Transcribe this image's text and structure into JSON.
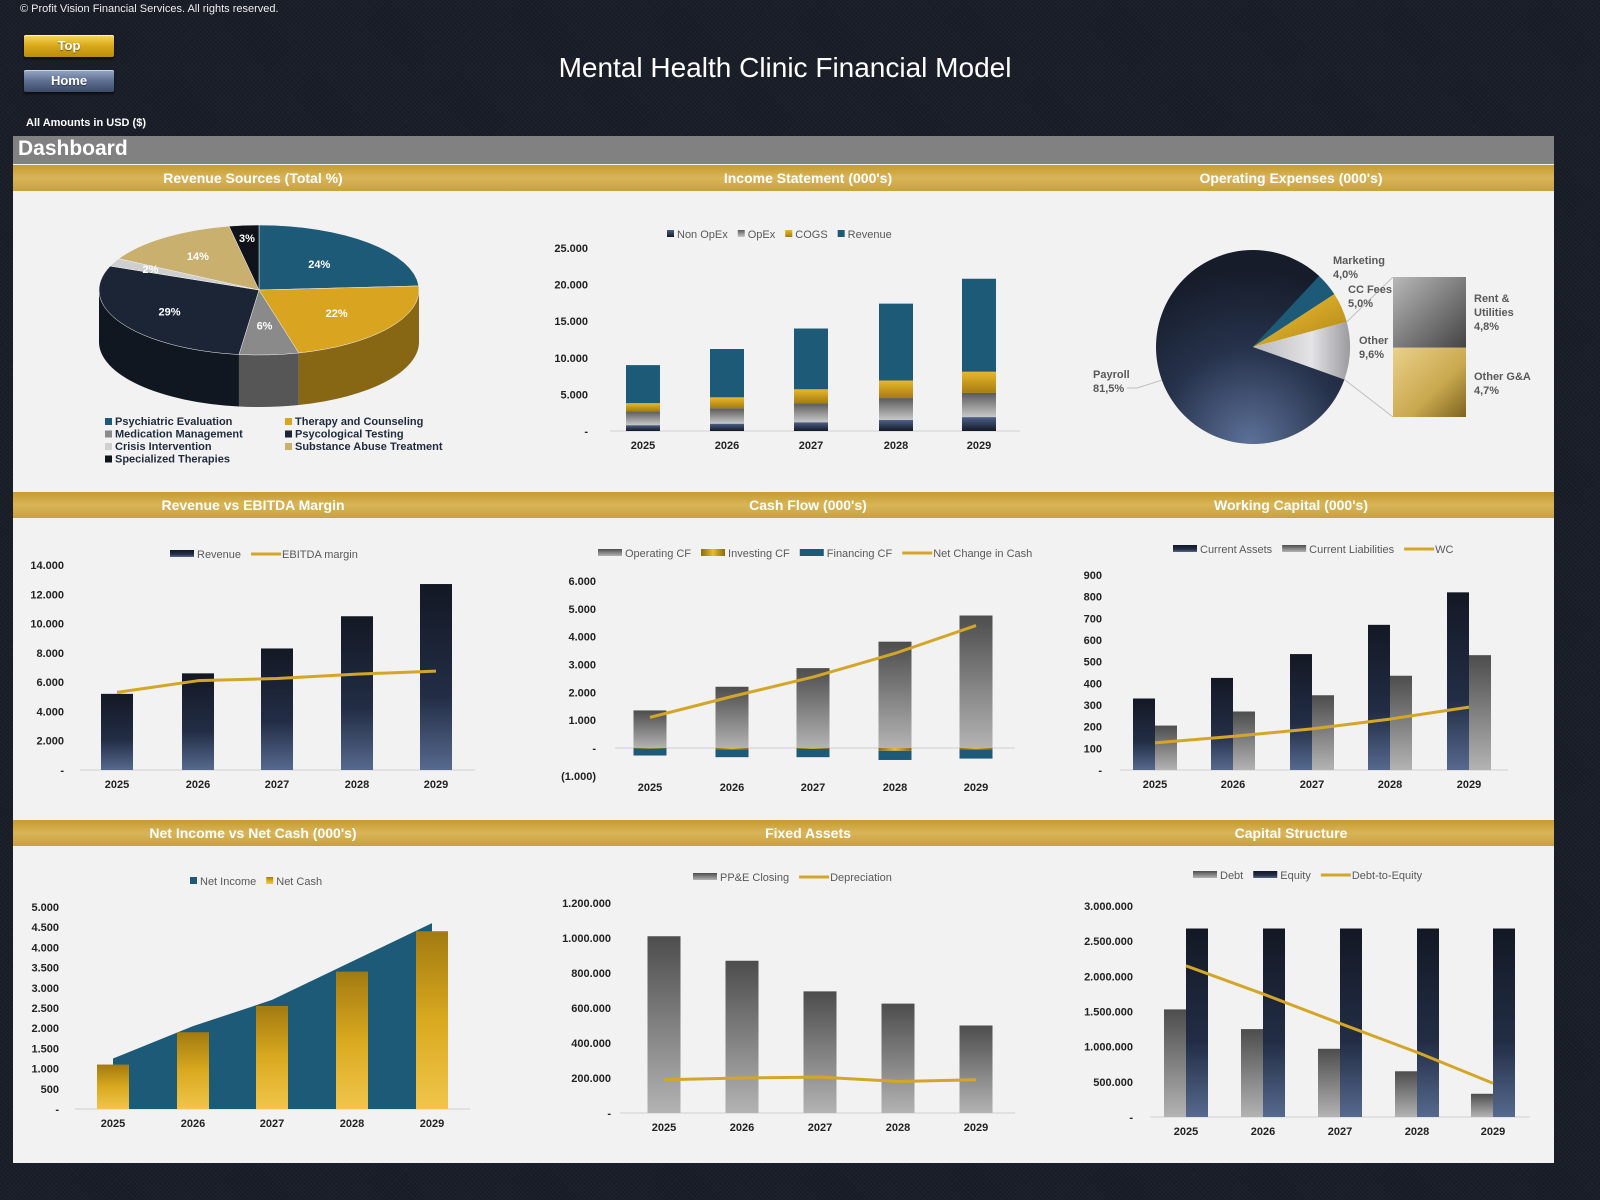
{
  "header": {
    "copyright": "© Profit Vision Financial Services. All rights reserved.",
    "top_button": "Top",
    "home_button": "Home",
    "title": "Mental Health Clinic Financial Model",
    "currency_note": "All Amounts in  USD ($)"
  },
  "dashboard": {
    "title": "Dashboard"
  },
  "colors": {
    "gold": "#d4a628",
    "teal": "#1d5a78",
    "navy": "#1c2536",
    "gray": "#7f7f7f",
    "panel_bg": "#f2f2f2"
  },
  "chart_data": {
    "revenue_sources": {
      "type": "pie",
      "style": "3d",
      "title": "Revenue Sources (Total %)",
      "labels": [
        "Psychiatric Evaluation",
        "Therapy and Counseling",
        "Medication Management",
        "Psycological Testing",
        "Crisis Intervention",
        "Substance Abuse Treatment",
        "Specialized Therapies"
      ],
      "values": [
        24,
        22,
        6,
        29,
        2,
        14,
        3
      ],
      "data_labels": [
        "24%",
        "22%",
        "6%",
        "29%",
        "2%",
        "14%",
        "3%"
      ],
      "colors": [
        "#1d5a78",
        "#d9a520",
        "#8a8a8a",
        "#1c2536",
        "#cfcfcf",
        "#c9b06e",
        "#10131a"
      ],
      "legend_position": "bottom"
    },
    "income_statement": {
      "type": "bar",
      "stacked": true,
      "title": "Income Statement (000's)",
      "categories": [
        "2025",
        "2026",
        "2027",
        "2028",
        "2029"
      ],
      "series": [
        {
          "name": "Non OpEx",
          "values": [
            800,
            1000,
            1200,
            1500,
            1900
          ]
        },
        {
          "name": "OpEx",
          "values": [
            1900,
            2100,
            2600,
            3000,
            3300
          ]
        },
        {
          "name": "COGS",
          "values": [
            1100,
            1500,
            1900,
            2400,
            2900
          ]
        },
        {
          "name": "Revenue",
          "values": [
            5200,
            6600,
            8300,
            10500,
            12700
          ]
        }
      ],
      "ylim": [
        0,
        25000
      ],
      "yticks": [
        0,
        5000,
        10000,
        15000,
        20000,
        25000
      ],
      "legend_position": "top",
      "grid": false
    },
    "operating_expenses": {
      "type": "bar-of-pie",
      "title": "Operating Expenses (000's)",
      "slices": [
        {
          "label": "Marketing",
          "value": 4.0,
          "value_label": "4,0%"
        },
        {
          "label": "CC Fees",
          "value": 5.0,
          "value_label": "5,0%"
        },
        {
          "label": "Other",
          "value": 9.6,
          "value_label": "9,6%"
        },
        {
          "label": "Payroll",
          "value": 81.5,
          "value_label": "81,5%"
        }
      ],
      "breakdown_of": "Other",
      "breakdown": [
        {
          "label": "Rent & Utilities",
          "value": 4.8,
          "value_label": "4,8%"
        },
        {
          "label": "Other G&A",
          "value": 4.7,
          "value_label": "4,7%"
        }
      ]
    },
    "revenue_vs_ebitda": {
      "type": "bar+line",
      "title": "Revenue vs EBITDA Margin",
      "categories": [
        "2025",
        "2026",
        "2027",
        "2028",
        "2029"
      ],
      "series": [
        {
          "name": "Revenue",
          "type": "bar",
          "values": [
            5200,
            6600,
            8300,
            10500,
            12700
          ]
        },
        {
          "name": "EBITDA margin",
          "type": "line",
          "values": [
            5300,
            6100,
            6250,
            6550,
            6750
          ]
        }
      ],
      "ylim": [
        0,
        14000
      ],
      "yticks": [
        0,
        2000,
        4000,
        6000,
        8000,
        10000,
        12000,
        14000
      ],
      "legend_position": "top"
    },
    "cash_flow": {
      "type": "bar+line",
      "stacked": true,
      "title": "Cash Flow (000's)",
      "categories": [
        "2025",
        "2026",
        "2027",
        "2028",
        "2029"
      ],
      "series": [
        {
          "name": "Operating CF",
          "type": "bar",
          "values": [
            1350,
            2200,
            2870,
            3820,
            4760
          ]
        },
        {
          "name": "Investing CF",
          "type": "bar",
          "values": [
            -20,
            -50,
            -30,
            -100,
            -50
          ]
        },
        {
          "name": "Financing CF",
          "type": "bar",
          "values": [
            -250,
            -280,
            -300,
            -330,
            -330
          ]
        },
        {
          "name": "Net Change in Cash",
          "type": "line",
          "values": [
            1100,
            1850,
            2550,
            3400,
            4400
          ]
        }
      ],
      "ylim": [
        -1000,
        6000
      ],
      "yticks": [
        -1000,
        0,
        1000,
        2000,
        3000,
        4000,
        5000,
        6000
      ],
      "legend_position": "top"
    },
    "working_capital": {
      "type": "bar+line",
      "title": "Working Capital (000's)",
      "categories": [
        "2025",
        "2026",
        "2027",
        "2028",
        "2029"
      ],
      "series": [
        {
          "name": "Current Assets",
          "type": "bar",
          "values": [
            330,
            425,
            535,
            670,
            820
          ]
        },
        {
          "name": "Current Liabilities",
          "type": "bar",
          "values": [
            205,
            270,
            345,
            435,
            530
          ]
        },
        {
          "name": "WC",
          "type": "line",
          "values": [
            125,
            155,
            190,
            235,
            290
          ]
        }
      ],
      "ylim": [
        0,
        900
      ],
      "yticks": [
        0,
        100,
        200,
        300,
        400,
        500,
        600,
        700,
        800,
        900
      ],
      "legend_position": "top"
    },
    "net_income_vs_cash": {
      "type": "area+bar",
      "title": "Net Income vs Net Cash (000's)",
      "categories": [
        "2025",
        "2026",
        "2027",
        "2028",
        "2029"
      ],
      "series": [
        {
          "name": "Net Income",
          "type": "area",
          "values": [
            1250,
            2050,
            2700,
            3650,
            4600
          ]
        },
        {
          "name": "Net Cash",
          "type": "bar",
          "values": [
            1100,
            1900,
            2550,
            3400,
            4400
          ]
        }
      ],
      "ylim": [
        0,
        5000
      ],
      "yticks": [
        0,
        500,
        1000,
        1500,
        2000,
        2500,
        3000,
        3500,
        4000,
        4500,
        5000
      ],
      "legend_position": "top"
    },
    "fixed_assets": {
      "type": "bar+line",
      "title": "Fixed Assets",
      "categories": [
        "2025",
        "2026",
        "2027",
        "2028",
        "2029"
      ],
      "series": [
        {
          "name": "PP&E Closing",
          "type": "bar",
          "values": [
            1010000,
            870000,
            695000,
            625000,
            500000
          ]
        },
        {
          "name": "Depreciation",
          "type": "line",
          "values": [
            190000,
            200000,
            205000,
            180000,
            190000
          ]
        }
      ],
      "ylim": [
        0,
        1200000
      ],
      "yticks": [
        0,
        200000,
        400000,
        600000,
        800000,
        1000000,
        1200000
      ],
      "legend_position": "top"
    },
    "capital_structure": {
      "type": "bar+line",
      "title": "Capital Structure",
      "categories": [
        "2025",
        "2026",
        "2027",
        "2028",
        "2029"
      ],
      "series": [
        {
          "name": "Debt",
          "type": "bar",
          "values": [
            1530000,
            1250000,
            970000,
            650000,
            330000
          ]
        },
        {
          "name": "Equity",
          "type": "bar",
          "values": [
            2680000,
            2680000,
            2680000,
            2680000,
            2680000
          ]
        },
        {
          "name": "Debt-to-Equity",
          "type": "line",
          "values": [
            2150000,
            1750000,
            1330000,
            920000,
            480000
          ]
        }
      ],
      "ylim": [
        0,
        3000000
      ],
      "yticks": [
        0,
        500000,
        1000000,
        1500000,
        2000000,
        2500000,
        3000000
      ],
      "legend_position": "top"
    }
  }
}
